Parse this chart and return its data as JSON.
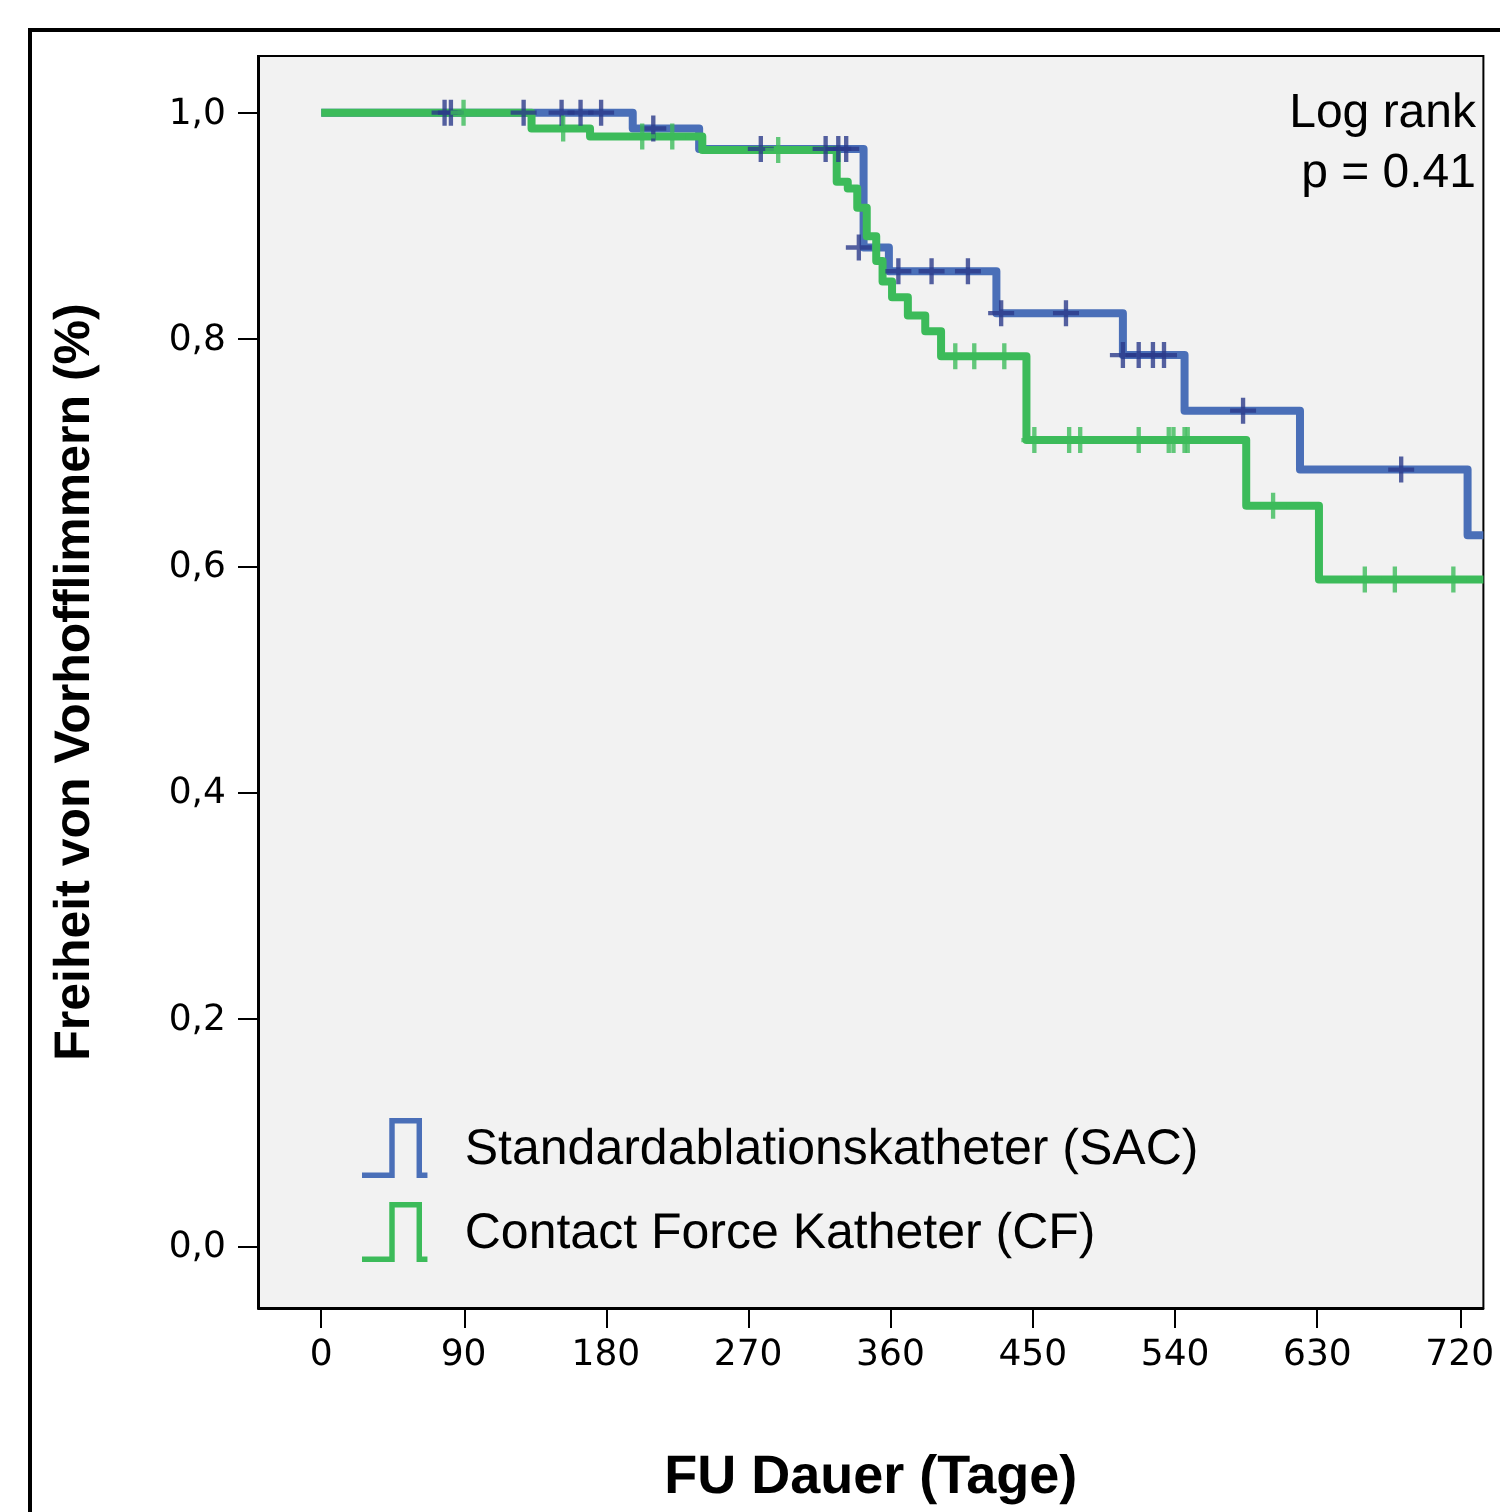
{
  "chart_data": {
    "type": "step",
    "xlabel": "FU Dauer (Tage)",
    "ylabel": "Freiheit von Vorhofflimmern (%)",
    "annotations": [
      "Log rank",
      "p = 0.41"
    ],
    "xlim": [
      -40,
      735
    ],
    "xticks": [
      0,
      90,
      180,
      270,
      360,
      450,
      540,
      630,
      720
    ],
    "ylim": [
      -0.055,
      1.05
    ],
    "yticks": [
      {
        "value": 0,
        "label": "0,0"
      },
      {
        "value": 0.2,
        "label": "0,2"
      },
      {
        "value": 0.4,
        "label": "0,4"
      },
      {
        "value": 0.6,
        "label": "0,6"
      },
      {
        "value": 0.8,
        "label": "0,8"
      },
      {
        "value": 1,
        "label": "1,0"
      }
    ],
    "grid": false,
    "legend": "bottom left",
    "line_style": "solid",
    "series": [
      {
        "name": "Standardablationskatheter (SAC)",
        "color": "#4a6fb8",
        "marker": "none",
        "x": [
          0,
          197,
          239,
          339,
          343,
          359,
          427,
          507,
          546,
          619,
          725,
          735
        ],
        "values": [
          1.0,
          0.986,
          0.968,
          0.968,
          0.881,
          0.86,
          0.823,
          0.786,
          0.737,
          0.685,
          0.627,
          0.627
        ]
      },
      {
        "name": "Contact Force Katheter (CF)",
        "color": "#3cbb5a",
        "marker": "none",
        "x": [
          0,
          133,
          170,
          241,
          326,
          333,
          339,
          345,
          351,
          355,
          361,
          371,
          382,
          392,
          446,
          585,
          631,
          735
        ],
        "values": [
          1.0,
          0.986,
          0.979,
          0.967,
          0.939,
          0.933,
          0.916,
          0.891,
          0.869,
          0.851,
          0.837,
          0.821,
          0.807,
          0.785,
          0.711,
          0.653,
          0.588,
          0.588
        ]
      },
      {
        "type": "scatter",
        "color": "#2b3a8a",
        "marker": "cross",
        "x": [
          78,
          82,
          128,
          152,
          164,
          177,
          210,
          278,
          319,
          327,
          332,
          340,
          365,
          386,
          409,
          430,
          471,
          507,
          517,
          526,
          533,
          583,
          683
        ],
        "values": [
          1.0,
          1.0,
          1.0,
          1.0,
          1.0,
          1.0,
          0.986,
          0.968,
          0.968,
          0.968,
          0.968,
          0.881,
          0.86,
          0.86,
          0.86,
          0.823,
          0.823,
          0.786,
          0.786,
          0.786,
          0.786,
          0.737,
          0.685
        ]
      },
      {
        "type": "scatter",
        "color": "#3cbb5a",
        "marker": "cross",
        "x": [
          90,
          153,
          203,
          222,
          289,
          401,
          413,
          432,
          451,
          473,
          480,
          517,
          536,
          539,
          546,
          548,
          602,
          660,
          679,
          716
        ],
        "values": [
          1.0,
          0.986,
          0.979,
          0.979,
          0.967,
          0.785,
          0.785,
          0.785,
          0.711,
          0.711,
          0.711,
          0.711,
          0.711,
          0.711,
          0.711,
          0.711,
          0.653,
          0.588,
          0.588,
          0.588
        ]
      }
    ]
  }
}
